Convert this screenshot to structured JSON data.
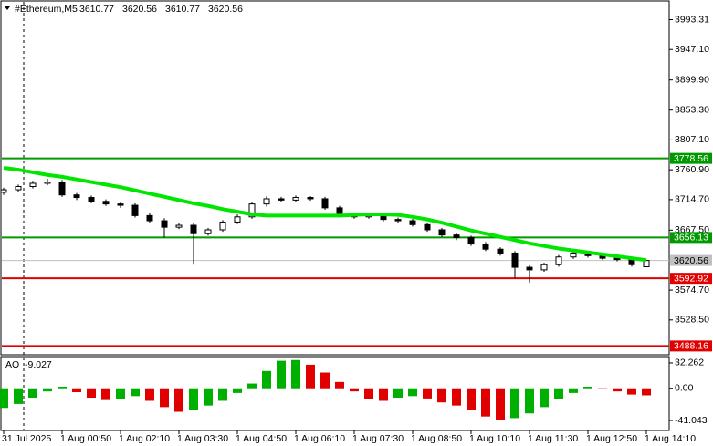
{
  "chart_data": [
    {
      "type": "candlestick",
      "title": "#Ethereum,M5",
      "last_bar": {
        "open": 3610.77,
        "high": 3620.56,
        "low": 3610.77,
        "close": 3620.56
      },
      "categories": [
        "31 Jul 2025",
        null,
        null,
        null,
        "1 Aug 00:50",
        null,
        null,
        null,
        "1 Aug 02:10",
        null,
        null,
        null,
        "1 Aug 03:30",
        null,
        null,
        null,
        "1 Aug 04:50",
        null,
        null,
        null,
        "1 Aug 06:10",
        null,
        null,
        null,
        "1 Aug 07:30",
        null,
        null,
        null,
        "1 Aug 08:50",
        null,
        null,
        null,
        "1 Aug 10:10",
        null,
        null,
        null,
        "1 Aug 11:30",
        null,
        null,
        null,
        "1 Aug 12:50",
        null,
        null,
        null,
        "1 Aug 14:10"
      ],
      "open": [
        3726,
        3730,
        3735,
        3740,
        3742,
        3722,
        3718,
        3712,
        3708,
        3706,
        3690,
        3682,
        3672,
        3675,
        3662,
        3668,
        3680,
        3688,
        3708,
        3716,
        3714,
        3718,
        3716,
        3702,
        3690,
        3688,
        3690,
        3684,
        3682,
        3676,
        3668,
        3660,
        3656,
        3646,
        3638,
        3632,
        3610,
        3606,
        3614,
        3626,
        3632,
        3628,
        3624,
        3622,
        3610.77
      ],
      "high": [
        3733,
        3738,
        3744,
        3747,
        3745,
        3725,
        3721,
        3715,
        3711,
        3709,
        3694,
        3686,
        3679,
        3678,
        3671,
        3683,
        3692,
        3711,
        3720,
        3719,
        3721,
        3720,
        3719,
        3705,
        3693,
        3693,
        3693,
        3687,
        3685,
        3679,
        3671,
        3663,
        3659,
        3649,
        3641,
        3635,
        3613,
        3617,
        3629,
        3635,
        3635,
        3631,
        3627,
        3625,
        3620.56
      ],
      "low": [
        3722,
        3727,
        3732,
        3737,
        3719,
        3714,
        3709,
        3705,
        3702,
        3687,
        3679,
        3656,
        3669,
        3614,
        3659,
        3665,
        3677,
        3685,
        3704,
        3711,
        3711,
        3713,
        3699,
        3687,
        3685,
        3685,
        3681,
        3679,
        3673,
        3665,
        3657,
        3652,
        3643,
        3635,
        3628,
        3593,
        3586,
        3603,
        3611,
        3623,
        3625,
        3621,
        3619,
        3611,
        3610.77
      ],
      "close": [
        3730,
        3735,
        3740,
        3742,
        3722,
        3718,
        3712,
        3708,
        3706,
        3690,
        3682,
        3672,
        3675,
        3662,
        3668,
        3680,
        3688,
        3708,
        3716,
        3714,
        3718,
        3716,
        3702,
        3690,
        3688,
        3690,
        3684,
        3682,
        3676,
        3668,
        3660,
        3656,
        3646,
        3638,
        3632,
        3610,
        3606,
        3614,
        3626,
        3632,
        3628,
        3624,
        3622,
        3614,
        3620.56
      ],
      "up_color": "#ffffff",
      "down_color": "#000000",
      "wick_color": "#000000",
      "moving_average": {
        "color": "#00e600",
        "values": [
          3764,
          3761,
          3757,
          3753,
          3750,
          3746,
          3742,
          3738,
          3734,
          3729,
          3724,
          3719,
          3714,
          3709,
          3705,
          3700,
          3696,
          3692,
          3690,
          3690,
          3690,
          3690,
          3690,
          3690,
          3691,
          3692,
          3692,
          3691,
          3688,
          3684,
          3679,
          3673,
          3667,
          3662,
          3657,
          3652,
          3647,
          3643,
          3639,
          3636,
          3633,
          3630,
          3627,
          3624,
          3621
        ]
      },
      "levels": [
        {
          "value": 3778.56,
          "color": "#009900"
        },
        {
          "value": 3656.13,
          "color": "#009900"
        },
        {
          "value": 3592.92,
          "color": "#e00000"
        },
        {
          "value": 3488.16,
          "color": "#e00000"
        }
      ],
      "current_price_color": "#c0c0c0",
      "ylim": [
        3476,
        4018
      ],
      "yticks": [
        3993.31,
        {
          "value": 3947.1,
          "label": "3947.10"
        },
        {
          "value": 3899.9,
          "label": "3899.90"
        },
        {
          "value": 3853.3,
          "label": "3853.30"
        },
        {
          "value": 3807.1,
          "label": "3807.10"
        },
        {
          "value": 3760.9,
          "label": "3760.90"
        },
        {
          "value": 3714.7,
          "label": "3714.70"
        },
        {
          "value": 3667.5,
          "label": "3667.50"
        },
        {
          "value": 3574.7,
          "label": "3574.70"
        },
        {
          "value": 3528.5,
          "label": "3528.50"
        }
      ]
    },
    {
      "type": "bar",
      "title": "AO",
      "current_value": -9.027,
      "values": [
        -25,
        -20,
        -12,
        -4,
        2,
        -5,
        -12,
        -15,
        -14,
        -10,
        -16,
        -24,
        -30,
        -28,
        -22,
        -16,
        -6,
        6,
        22,
        35,
        36,
        30,
        20,
        8,
        -4,
        -14,
        -16,
        -12,
        -10,
        -13,
        -18,
        -22,
        -28,
        -36,
        -40,
        -38,
        -32,
        -24,
        -14,
        -6,
        2,
        0,
        -4,
        -8,
        -9.027
      ],
      "up_color": "#00b000",
      "down_color": "#e00000",
      "ylim": [
        -53.8,
        39.2
      ],
      "yticks": [
        32.262,
        {
          "value": 0,
          "label": "0.00"
        },
        -41.043
      ]
    }
  ]
}
